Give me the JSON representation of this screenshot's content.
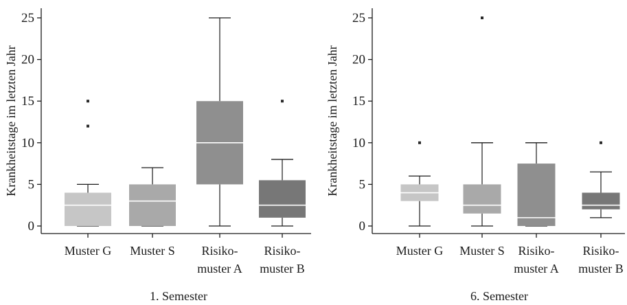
{
  "chart_data": [
    {
      "type": "boxplot",
      "title": "",
      "caption": "1. Semester",
      "ylabel": "Krankheitstage im letzten Jahr",
      "ylim": [
        0,
        26
      ],
      "yticks": [
        0,
        5,
        10,
        15,
        20,
        25
      ],
      "grid": false,
      "legend": "none",
      "categories": [
        {
          "line1": "Muster G",
          "line2": ""
        },
        {
          "line1": "Muster S",
          "line2": ""
        },
        {
          "line1": "Risiko-",
          "line2": "muster A"
        },
        {
          "line1": "Risiko-",
          "line2": "muster B"
        }
      ],
      "boxes": [
        {
          "min": 0,
          "q1": 0,
          "median": 2.5,
          "q3": 4,
          "max": 5,
          "outliers": [
            12,
            15
          ],
          "color": "#c6c6c6"
        },
        {
          "min": 0,
          "q1": 0,
          "median": 3,
          "q3": 5,
          "max": 7,
          "outliers": [],
          "color": "#a9a9a9"
        },
        {
          "min": 0,
          "q1": 5,
          "median": 10,
          "q3": 15,
          "max": 25,
          "outliers": [],
          "color": "#8f8f8f"
        },
        {
          "min": 0,
          "q1": 1,
          "median": 2.5,
          "q3": 5.5,
          "max": 8,
          "outliers": [
            15
          ],
          "color": "#777777"
        }
      ]
    },
    {
      "type": "boxplot",
      "title": "",
      "caption": "6. Semester",
      "ylabel": "Krankheitstage im letzten Jahr",
      "ylim": [
        0,
        26
      ],
      "yticks": [
        0,
        5,
        10,
        15,
        20,
        25
      ],
      "grid": false,
      "legend": "none",
      "categories": [
        {
          "line1": "Muster G",
          "line2": ""
        },
        {
          "line1": "Muster S",
          "line2": ""
        },
        {
          "line1": "Risiko-",
          "line2": "muster A"
        },
        {
          "line1": "Risiko-",
          "line2": "muster B"
        }
      ],
      "boxes": [
        {
          "min": 0,
          "q1": 3,
          "median": 4,
          "q3": 5,
          "max": 6,
          "outliers": [
            10
          ],
          "color": "#c6c6c6"
        },
        {
          "min": 0,
          "q1": 1.5,
          "median": 2.5,
          "q3": 5,
          "max": 10,
          "outliers": [
            25
          ],
          "color": "#a9a9a9"
        },
        {
          "min": 0,
          "q1": 0,
          "median": 1,
          "q3": 7.5,
          "max": 10,
          "outliers": [],
          "color": "#8f8f8f"
        },
        {
          "min": 1,
          "q1": 2,
          "median": 2.5,
          "q3": 4,
          "max": 6.5,
          "outliers": [
            10
          ],
          "color": "#777777"
        }
      ]
    }
  ]
}
